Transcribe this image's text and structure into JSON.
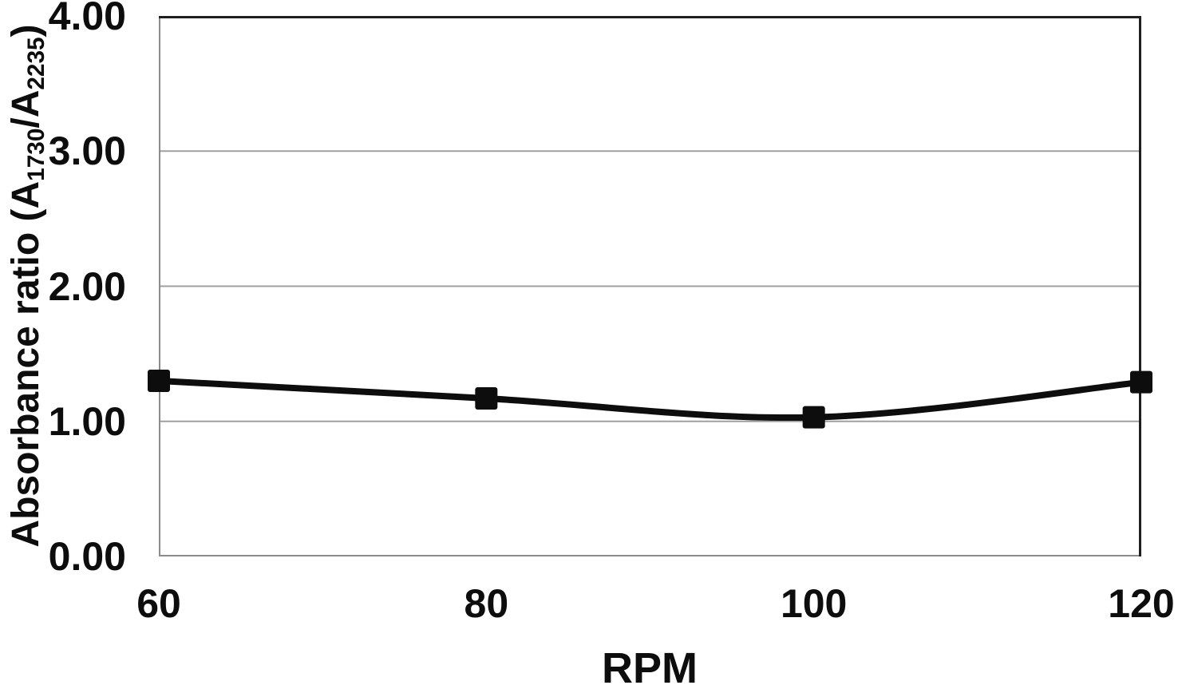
{
  "chart_data": {
    "type": "line",
    "title": "",
    "xlabel": "RPM",
    "ylabel": "Absorbance ratio (A1730/A2235)",
    "ylabel_parts": {
      "prefix": "Absorbance ratio (A",
      "sub1": "1730",
      "mid": "/A",
      "sub2": "2235",
      "suffix": ")"
    },
    "x": [
      60,
      80,
      100,
      120
    ],
    "xtick_labels": [
      "60",
      "80",
      "100",
      "120"
    ],
    "series": [
      {
        "name": "absorbance-ratio",
        "values": [
          1.3,
          1.17,
          1.03,
          1.29
        ],
        "color": "#0d0d0d",
        "marker": "square",
        "line_style": "smooth"
      }
    ],
    "xlim": [
      60,
      120
    ],
    "ylim": [
      0,
      4
    ],
    "ytick_values": [
      0,
      1,
      2,
      3,
      4
    ],
    "ytick_labels": [
      "0.00",
      "1.00",
      "2.00",
      "3.00",
      "4.00"
    ],
    "grid": "horizontal-only",
    "legend": "none",
    "colors": {
      "line": "#0d0d0d",
      "marker": "#0d0d0d",
      "gridline": "#a0a0a0",
      "axis_left_bottom": "#8c8c8c",
      "frame_top_right": "#1f1f1f",
      "text": "#0d0d0d",
      "background": "#ffffff"
    }
  }
}
